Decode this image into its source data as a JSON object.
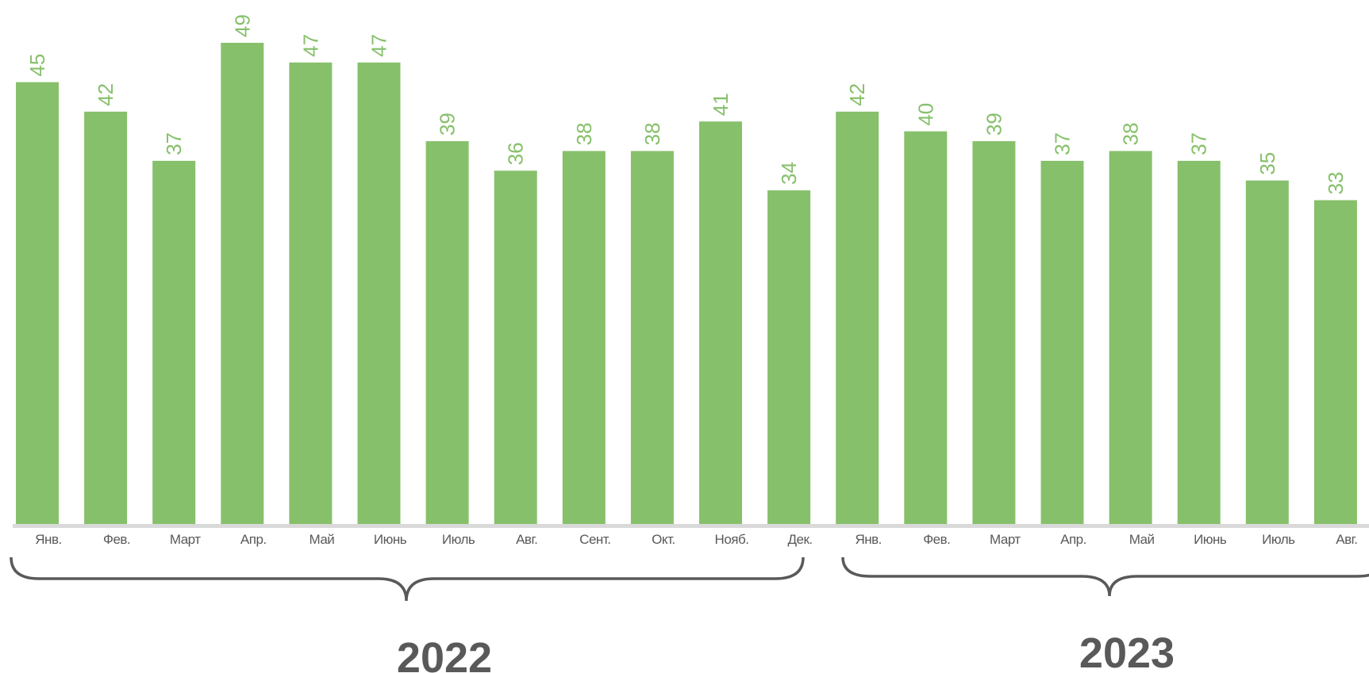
{
  "chart_data": {
    "type": "bar",
    "title": "",
    "xlabel": "",
    "ylabel": "",
    "ylim": [
      0,
      53
    ],
    "grid": false,
    "legend": "none",
    "bar_color": "#87c06b",
    "label_color": "#87c06b",
    "axis_color": "#d9d9d9",
    "text_color": "#595959",
    "categories": [
      "Янв.",
      "Фев.",
      "Март",
      "Апр.",
      "Май",
      "Июнь",
      "Июль",
      "Авг.",
      "Сент.",
      "Окт.",
      "Нояб.",
      "Дек.",
      "Янв.",
      "Фев.",
      "Март",
      "Апр.",
      "Май",
      "Июнь",
      "Июль",
      "Авг."
    ],
    "values": [
      45,
      42,
      37,
      49,
      47,
      47,
      39,
      36,
      38,
      38,
      41,
      34,
      42,
      40,
      39,
      37,
      38,
      37,
      35,
      33
    ],
    "groups": [
      {
        "label": "2022",
        "start": 0,
        "end": 11
      },
      {
        "label": "2023",
        "start": 12,
        "end": 19
      }
    ]
  }
}
